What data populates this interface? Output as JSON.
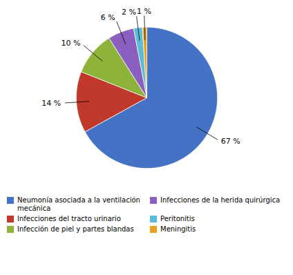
{
  "chart_data": {
    "type": "pie",
    "categories": [
      "Neumonía asociada a la ventilación mecánica",
      "Infecciones del tracto urinario",
      "Infección de piel y partes blandas",
      "Infecciones de la herida quirúrgica",
      "Peritonitis",
      "Meningitis"
    ],
    "values": [
      67,
      14,
      10,
      6,
      2,
      1
    ],
    "value_labels": [
      "67 %",
      "14 %",
      "10 %",
      "6 %",
      "2 %",
      "1 %"
    ],
    "colors": [
      "#4472C4",
      "#C0392B",
      "#8DB33A",
      "#8B5FBF",
      "#5BBCD6",
      "#E8A020"
    ],
    "data_labels": true,
    "legend": "bottom"
  }
}
